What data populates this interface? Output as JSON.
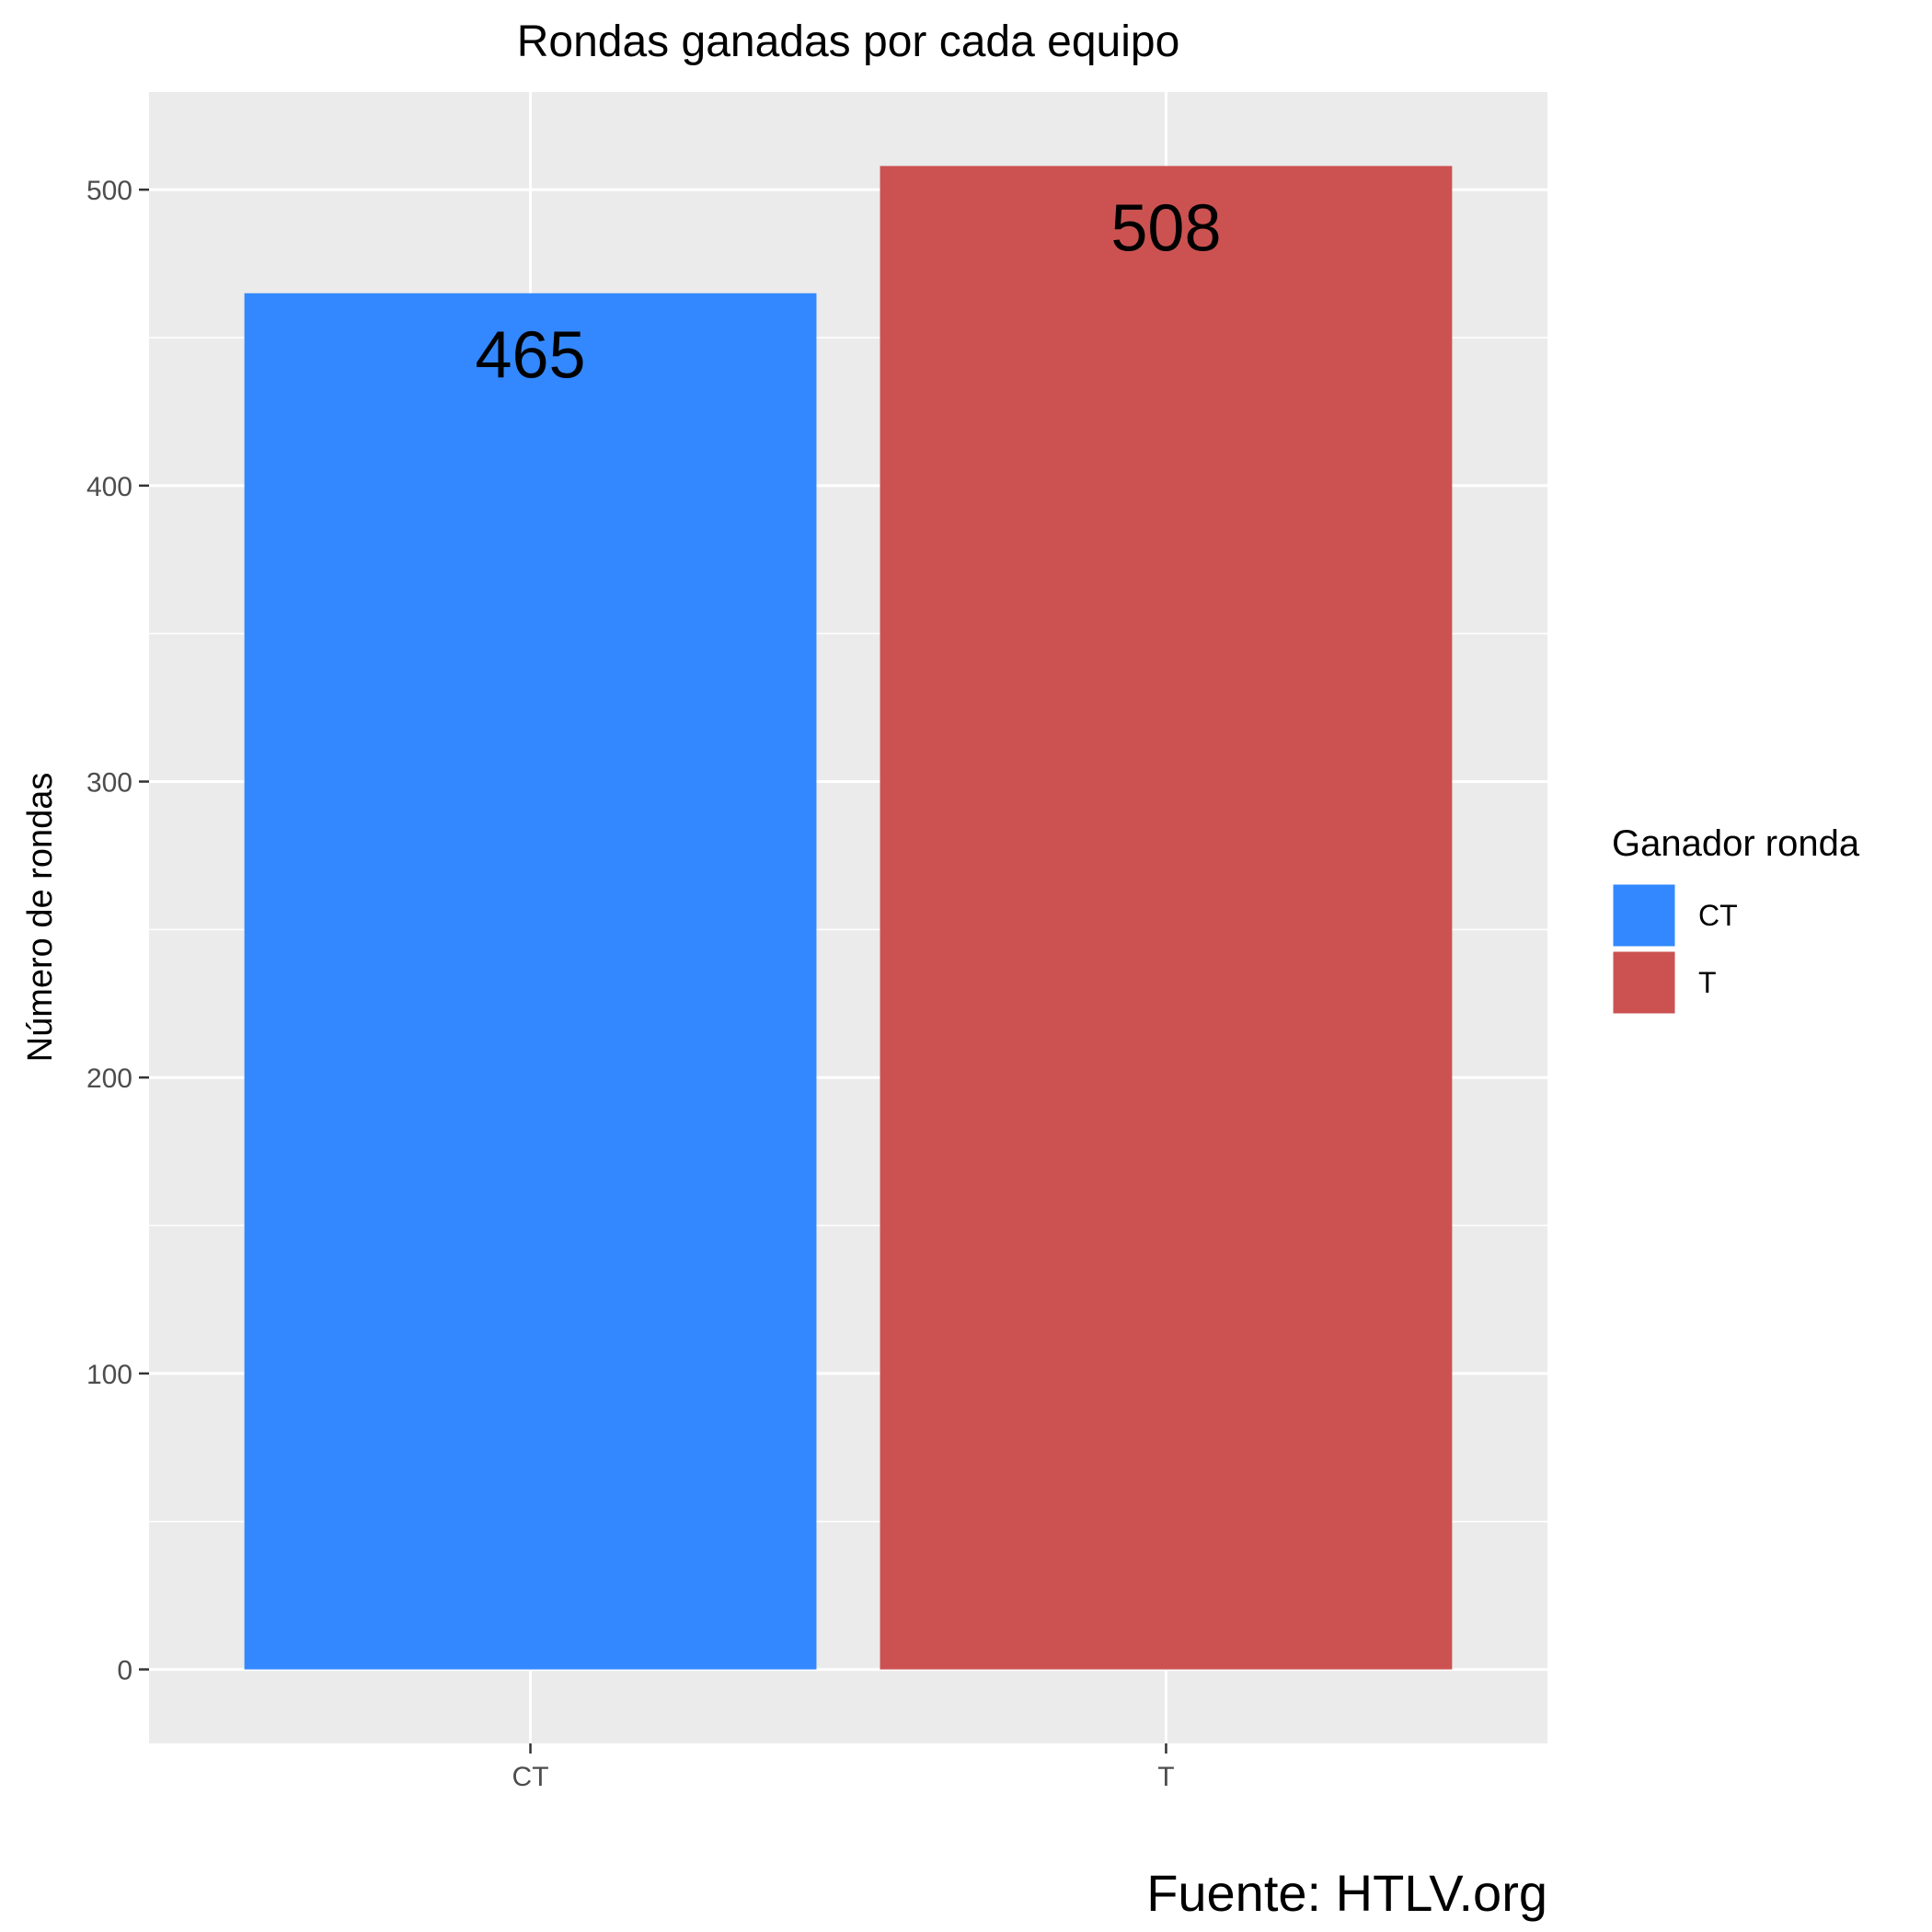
{
  "chart_data": {
    "type": "bar",
    "title": "Rondas ganadas por cada equipo",
    "categories": [
      "CT",
      "T"
    ],
    "values": [
      465,
      508
    ],
    "data_labels": [
      "465",
      "508"
    ],
    "colors": [
      "#3388ff",
      "#cc5252"
    ],
    "xlabel": "",
    "ylabel": "Número de rondas",
    "ylim": [
      -25,
      533
    ],
    "yticks": [
      0,
      100,
      200,
      300,
      400,
      500
    ],
    "ytick_labels": [
      "0",
      "100",
      "200",
      "300",
      "400",
      "500"
    ],
    "grid": true,
    "legend": {
      "title": "Ganador ronda",
      "placement": "right",
      "entries": [
        {
          "label": "CT",
          "color": "#3388ff"
        },
        {
          "label": "T",
          "color": "#cc5252"
        }
      ]
    },
    "caption": "Fuente: HTLV.org"
  }
}
